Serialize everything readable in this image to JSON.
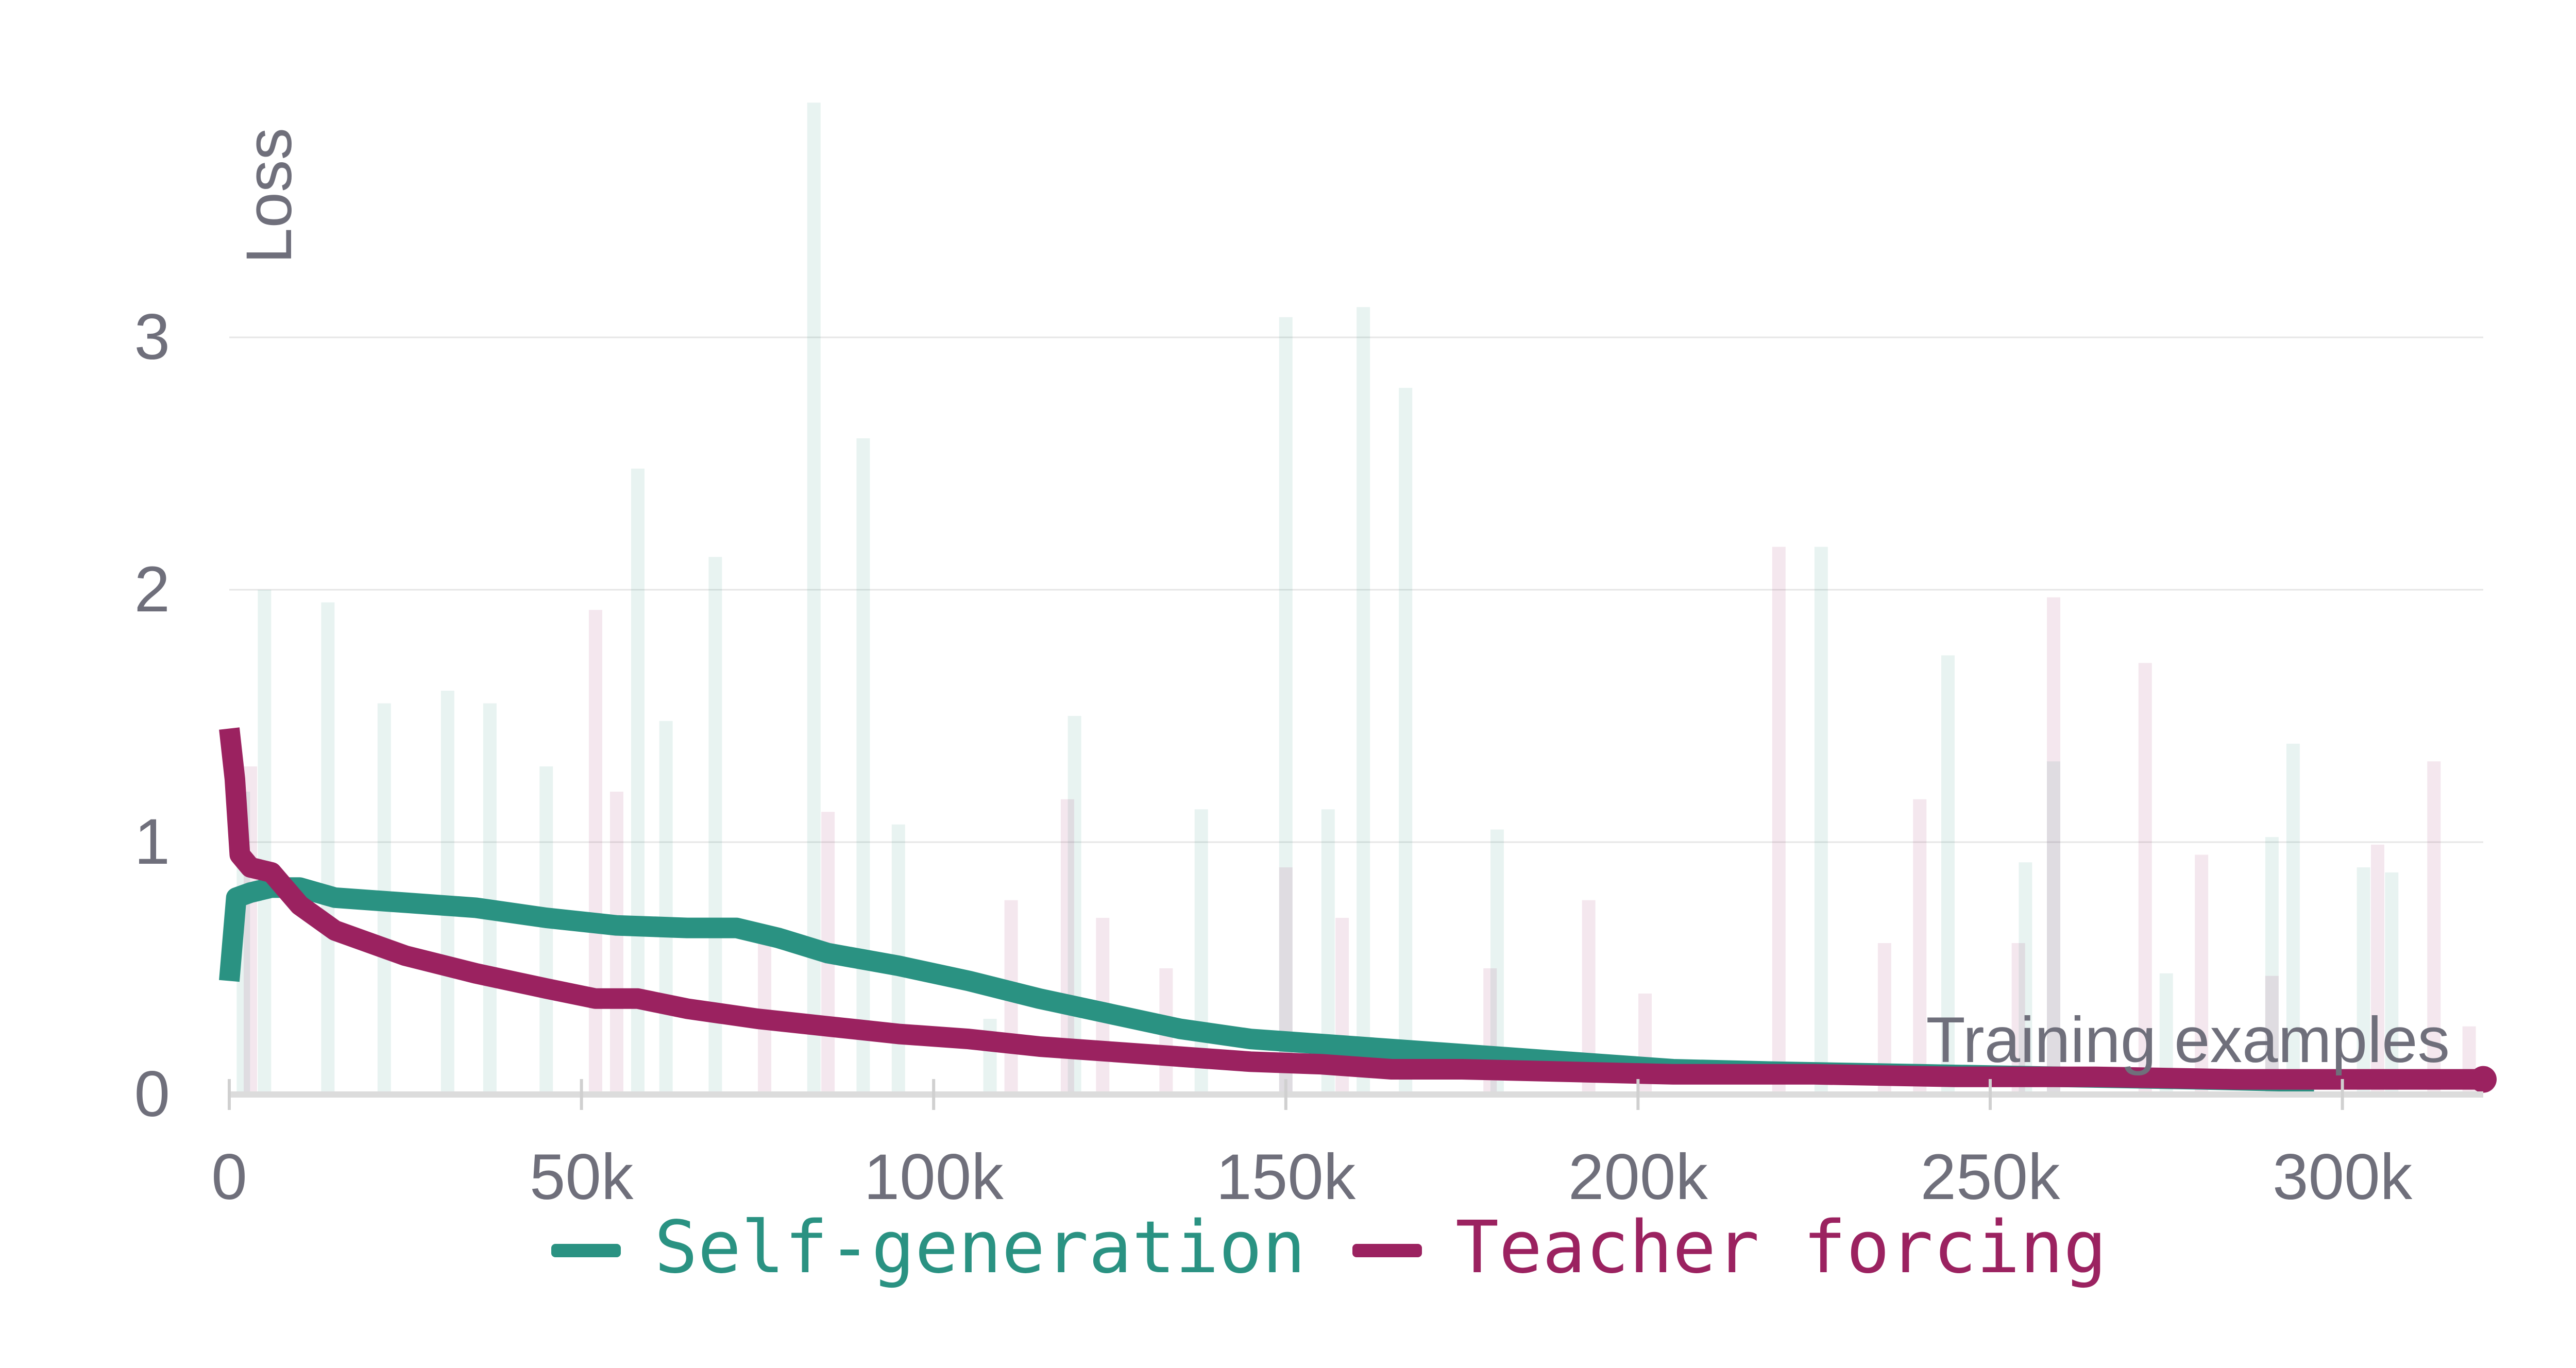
{
  "chart_data": {
    "type": "line",
    "title": "",
    "xlabel": "Training examples",
    "ylabel": "Loss",
    "xlim": [
      0,
      320000
    ],
    "ylim": [
      0,
      3.3
    ],
    "grid": true,
    "x_ticks": [
      0,
      50000,
      100000,
      150000,
      200000,
      250000,
      300000
    ],
    "x_tick_labels": [
      "0",
      "50k",
      "100k",
      "150k",
      "200k",
      "250k",
      "300k"
    ],
    "y_ticks": [
      0,
      1,
      2,
      3
    ],
    "y_tick_labels": [
      "0",
      "1",
      "2",
      "3"
    ],
    "legend_position": "bottom-center",
    "series": [
      {
        "name": "Self-generation",
        "color": "#2a9282",
        "smoothed": [
          [
            0,
            0.45
          ],
          [
            1000,
            0.78
          ],
          [
            3000,
            0.8
          ],
          [
            6000,
            0.82
          ],
          [
            10000,
            0.82
          ],
          [
            15000,
            0.78
          ],
          [
            25000,
            0.76
          ],
          [
            35000,
            0.74
          ],
          [
            45000,
            0.7
          ],
          [
            55000,
            0.67
          ],
          [
            65000,
            0.66
          ],
          [
            72000,
            0.66
          ],
          [
            78000,
            0.62
          ],
          [
            85000,
            0.56
          ],
          [
            95000,
            0.51
          ],
          [
            105000,
            0.45
          ],
          [
            115000,
            0.38
          ],
          [
            125000,
            0.32
          ],
          [
            135000,
            0.26
          ],
          [
            145000,
            0.22
          ],
          [
            155000,
            0.2
          ],
          [
            165000,
            0.18
          ],
          [
            175000,
            0.16
          ],
          [
            185000,
            0.14
          ],
          [
            195000,
            0.12
          ],
          [
            205000,
            0.1
          ],
          [
            220000,
            0.09
          ],
          [
            240000,
            0.08
          ],
          [
            260000,
            0.07
          ],
          [
            280000,
            0.06
          ],
          [
            296000,
            0.05
          ]
        ],
        "raw_spikes": [
          [
            2000,
            1.2
          ],
          [
            5000,
            2.0
          ],
          [
            14000,
            1.95
          ],
          [
            22000,
            1.55
          ],
          [
            31000,
            1.6
          ],
          [
            37000,
            1.55
          ],
          [
            45000,
            1.3
          ],
          [
            58000,
            2.48
          ],
          [
            62000,
            1.48
          ],
          [
            69000,
            2.13
          ],
          [
            83000,
            3.93
          ],
          [
            90000,
            2.6
          ],
          [
            95000,
            1.07
          ],
          [
            108000,
            0.3
          ],
          [
            120000,
            1.5
          ],
          [
            138000,
            1.13
          ],
          [
            150000,
            3.08
          ],
          [
            156000,
            1.13
          ],
          [
            161000,
            3.12
          ],
          [
            167000,
            2.8
          ],
          [
            180000,
            1.05
          ],
          [
            226000,
            2.17
          ],
          [
            244000,
            1.74
          ],
          [
            255000,
            0.92
          ],
          [
            259000,
            1.32
          ],
          [
            275000,
            0.48
          ],
          [
            290000,
            1.02
          ],
          [
            293000,
            1.39
          ],
          [
            303000,
            0.9
          ],
          [
            307000,
            0.88
          ]
        ]
      },
      {
        "name": "Teacher forcing",
        "color": "#9b2260",
        "smoothed": [
          [
            0,
            1.45
          ],
          [
            800,
            1.25
          ],
          [
            1500,
            0.95
          ],
          [
            3000,
            0.9
          ],
          [
            6000,
            0.88
          ],
          [
            10000,
            0.75
          ],
          [
            15000,
            0.65
          ],
          [
            25000,
            0.55
          ],
          [
            35000,
            0.48
          ],
          [
            45000,
            0.42
          ],
          [
            52000,
            0.38
          ],
          [
            58000,
            0.38
          ],
          [
            65000,
            0.34
          ],
          [
            75000,
            0.3
          ],
          [
            85000,
            0.27
          ],
          [
            95000,
            0.24
          ],
          [
            105000,
            0.22
          ],
          [
            115000,
            0.19
          ],
          [
            125000,
            0.17
          ],
          [
            135000,
            0.15
          ],
          [
            145000,
            0.13
          ],
          [
            155000,
            0.12
          ],
          [
            165000,
            0.1
          ],
          [
            175000,
            0.1
          ],
          [
            190000,
            0.09
          ],
          [
            205000,
            0.08
          ],
          [
            225000,
            0.08
          ],
          [
            245000,
            0.07
          ],
          [
            265000,
            0.07
          ],
          [
            285000,
            0.06
          ],
          [
            305000,
            0.06
          ],
          [
            320000,
            0.06
          ]
        ],
        "raw_spikes": [
          [
            3000,
            1.3
          ],
          [
            52000,
            1.92
          ],
          [
            55000,
            1.2
          ],
          [
            76000,
            0.6
          ],
          [
            85000,
            1.12
          ],
          [
            111000,
            0.77
          ],
          [
            119000,
            1.17
          ],
          [
            124000,
            0.7
          ],
          [
            133000,
            0.5
          ],
          [
            150000,
            0.9
          ],
          [
            158000,
            0.7
          ],
          [
            179000,
            0.5
          ],
          [
            193000,
            0.77
          ],
          [
            201000,
            0.4
          ],
          [
            220000,
            2.17
          ],
          [
            235000,
            0.6
          ],
          [
            240000,
            1.17
          ],
          [
            254000,
            0.6
          ],
          [
            259000,
            1.97
          ],
          [
            272000,
            1.71
          ],
          [
            280000,
            0.95
          ],
          [
            290000,
            0.47
          ],
          [
            305000,
            0.99
          ],
          [
            313000,
            1.32
          ],
          [
            318000,
            0.27
          ]
        ]
      }
    ]
  }
}
